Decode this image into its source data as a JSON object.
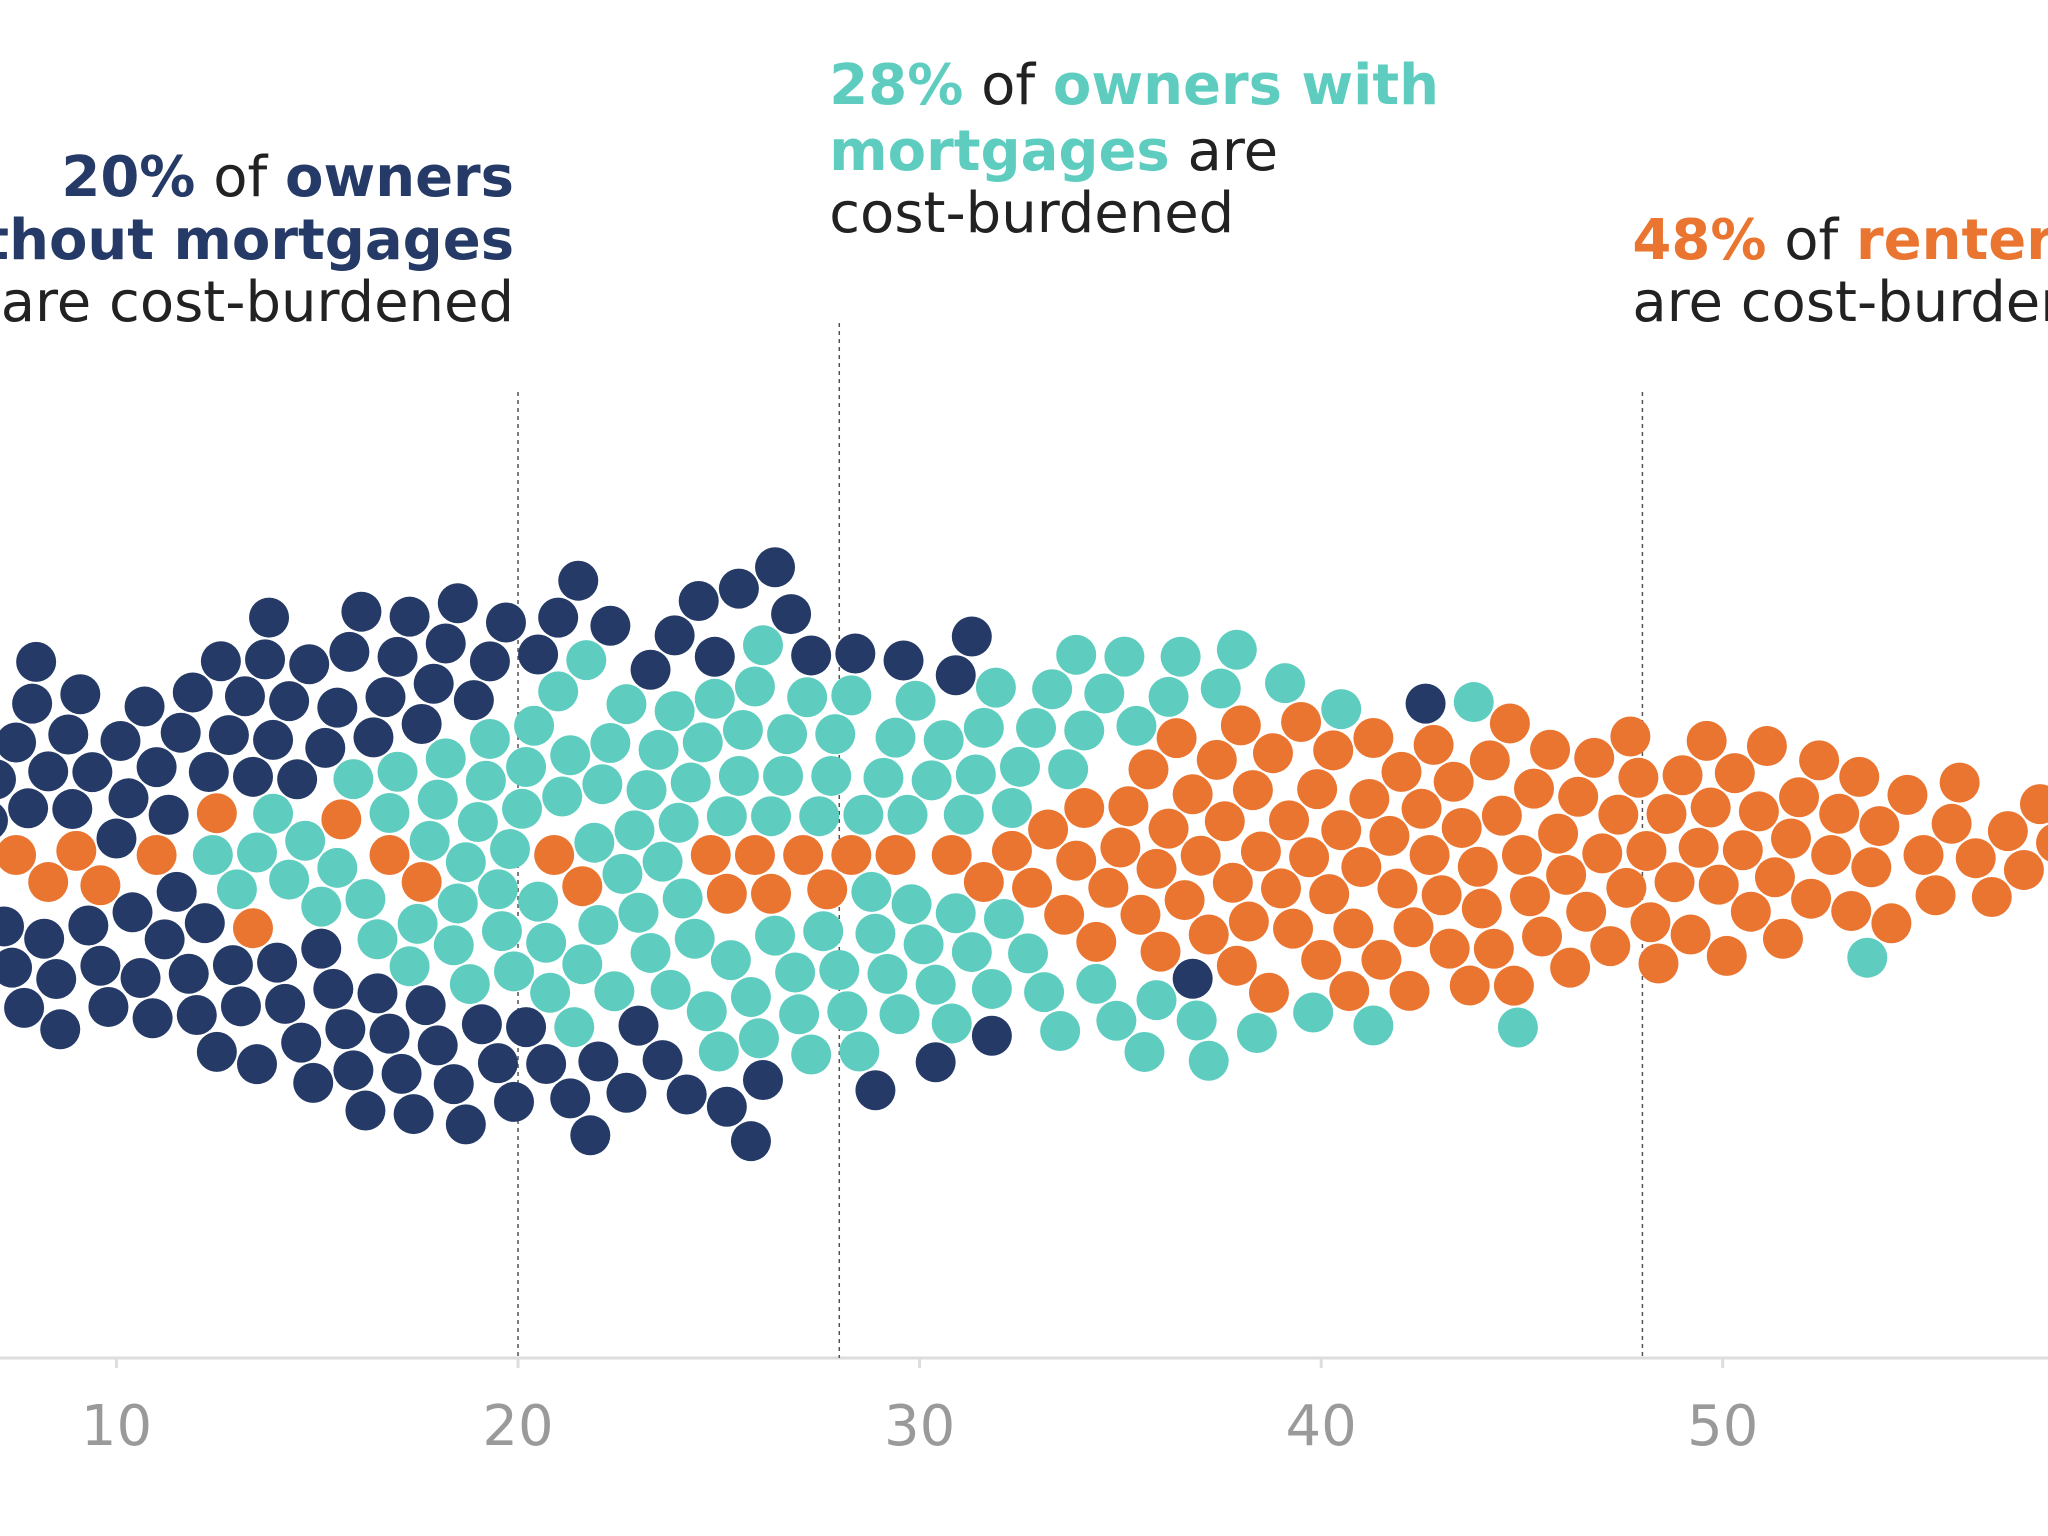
{
  "chart_data": {
    "type": "beeswarm",
    "xlim": [
      7.1,
      58.1
    ],
    "xticks": [
      10,
      20,
      30,
      40,
      50
    ],
    "series": [
      {
        "color": "#253a66",
        "values": [
          6.2,
          6.5,
          6.8,
          7.0,
          7.2,
          7.4,
          7.5,
          7.7,
          7.8,
          7.9,
          8.0,
          8.2,
          8.3,
          8.5,
          8.6,
          8.8,
          8.9,
          9.1,
          9.3,
          9.4,
          9.6,
          9.8,
          10.0,
          10.1,
          10.3,
          10.4,
          10.6,
          10.7,
          10.9,
          11.0,
          11.2,
          11.3,
          11.5,
          11.6,
          11.8,
          11.9,
          12.0,
          12.2,
          12.3,
          12.5,
          12.6,
          12.8,
          12.9,
          13.1,
          13.2,
          13.4,
          13.5,
          13.7,
          13.8,
          13.9,
          14.0,
          14.2,
          14.3,
          14.5,
          14.6,
          14.8,
          14.9,
          15.1,
          15.2,
          15.4,
          15.5,
          15.7,
          15.8,
          15.9,
          16.1,
          16.2,
          16.4,
          16.5,
          16.7,
          16.8,
          17.0,
          17.1,
          17.3,
          17.4,
          17.6,
          17.7,
          17.9,
          18.0,
          18.2,
          18.4,
          18.5,
          18.7,
          18.9,
          19.1,
          19.3,
          19.5,
          19.7,
          19.9,
          20.2,
          20.5,
          20.7,
          21.0,
          21.3,
          21.5,
          21.8,
          22.0,
          22.3,
          22.7,
          23.0,
          23.3,
          23.6,
          23.9,
          24.2,
          24.5,
          24.9,
          25.2,
          25.5,
          25.8,
          26.1,
          26.4,
          26.8,
          27.3,
          28.4,
          28.9,
          29.6,
          30.4,
          30.9,
          31.3,
          31.8,
          36.8,
          42.6
        ]
      },
      {
        "color": "#5ecdc0",
        "values": [
          12.4,
          13.0,
          13.5,
          13.9,
          14.3,
          14.7,
          15.1,
          15.5,
          15.9,
          16.2,
          16.5,
          16.8,
          17.0,
          17.3,
          17.5,
          17.8,
          18.0,
          18.2,
          18.4,
          18.5,
          18.7,
          18.8,
          19.0,
          19.2,
          19.3,
          19.5,
          19.6,
          19.8,
          19.9,
          20.1,
          20.2,
          20.4,
          20.5,
          20.7,
          20.8,
          21.0,
          21.1,
          21.3,
          21.4,
          21.6,
          21.7,
          21.9,
          22.0,
          22.1,
          22.3,
          22.4,
          22.6,
          22.7,
          22.9,
          23.0,
          23.2,
          23.3,
          23.5,
          23.6,
          23.8,
          23.9,
          24.0,
          24.1,
          24.3,
          24.4,
          24.6,
          24.7,
          24.9,
          25.0,
          25.2,
          25.3,
          25.5,
          25.6,
          25.8,
          25.9,
          26.0,
          26.1,
          26.3,
          26.4,
          26.6,
          26.7,
          26.9,
          27.0,
          27.2,
          27.3,
          27.5,
          27.6,
          27.8,
          27.9,
          28.0,
          28.2,
          28.3,
          28.5,
          28.6,
          28.8,
          28.9,
          29.1,
          29.2,
          29.4,
          29.5,
          29.7,
          29.8,
          29.9,
          30.1,
          30.3,
          30.4,
          30.6,
          30.8,
          30.9,
          31.1,
          31.3,
          31.4,
          31.6,
          31.8,
          31.9,
          32.1,
          32.3,
          32.5,
          32.7,
          32.9,
          33.1,
          33.3,
          33.5,
          33.7,
          33.9,
          34.1,
          34.4,
          34.6,
          34.9,
          35.1,
          35.4,
          35.6,
          35.9,
          36.2,
          36.5,
          36.9,
          37.2,
          37.5,
          37.9,
          38.4,
          39.1,
          39.8,
          40.5,
          41.3,
          43.8,
          44.9,
          53.6
        ]
      },
      {
        "color": "#ea7530",
        "values": [
          7.5,
          8.3,
          9.0,
          9.6,
          11.0,
          12.5,
          13.4,
          15.6,
          16.8,
          17.6,
          20.9,
          21.6,
          24.8,
          25.2,
          25.9,
          26.3,
          27.1,
          27.7,
          28.3,
          29.4,
          30.8,
          31.6,
          32.3,
          32.8,
          33.2,
          33.6,
          33.9,
          34.1,
          34.4,
          34.7,
          35.0,
          35.2,
          35.5,
          35.7,
          35.9,
          36.0,
          36.2,
          36.4,
          36.6,
          36.8,
          37.0,
          37.2,
          37.4,
          37.6,
          37.8,
          37.9,
          38.0,
          38.2,
          38.3,
          38.5,
          38.7,
          38.8,
          39.0,
          39.2,
          39.3,
          39.5,
          39.7,
          39.9,
          40.0,
          40.2,
          40.3,
          40.5,
          40.7,
          40.8,
          41.0,
          41.2,
          41.3,
          41.5,
          41.7,
          41.9,
          42.0,
          42.2,
          42.3,
          42.5,
          42.7,
          42.8,
          43.0,
          43.2,
          43.3,
          43.5,
          43.7,
          43.9,
          44.0,
          44.2,
          44.3,
          44.5,
          44.7,
          44.8,
          45.0,
          45.2,
          45.3,
          45.5,
          45.7,
          45.9,
          46.1,
          46.2,
          46.4,
          46.6,
          46.8,
          47.0,
          47.2,
          47.4,
          47.6,
          47.7,
          47.9,
          48.1,
          48.2,
          48.4,
          48.6,
          48.8,
          49.0,
          49.2,
          49.4,
          49.6,
          49.7,
          49.9,
          50.1,
          50.3,
          50.5,
          50.7,
          50.9,
          51.1,
          51.3,
          51.5,
          51.7,
          51.9,
          52.2,
          52.4,
          52.7,
          52.9,
          53.2,
          53.4,
          53.7,
          53.9,
          54.2,
          54.6,
          55.0,
          55.3,
          55.7,
          55.9,
          56.3,
          56.7,
          57.1,
          57.5,
          57.9,
          58.3,
          58.8,
          59.4
        ]
      }
    ],
    "annotations": [
      {
        "value": 20,
        "anchor": "end",
        "lines": [
          [
            {
              "text": "20%",
              "color": "#253a66",
              "bold": true
            },
            {
              "text": " of ",
              "color": "#222222"
            },
            {
              "text": "owners",
              "color": "#253a66",
              "bold": true
            }
          ],
          [
            {
              "text": "without mortgages",
              "color": "#253a66",
              "bold": true
            }
          ],
          [
            {
              "text": "are cost-burdened",
              "color": "#222222"
            }
          ]
        ]
      },
      {
        "value": 28,
        "anchor": "start",
        "lines": [
          [
            {
              "text": "28%",
              "color": "#5ecdc0",
              "bold": true
            },
            {
              "text": " of ",
              "color": "#222222"
            },
            {
              "text": "owners with",
              "color": "#5ecdc0",
              "bold": true
            }
          ],
          [
            {
              "text": "mortgages",
              "color": "#5ecdc0",
              "bold": true
            },
            {
              "text": " are",
              "color": "#222222"
            }
          ],
          [
            {
              "text": "cost-burdened",
              "color": "#222222"
            }
          ]
        ]
      },
      {
        "value": 48,
        "anchor": "start",
        "lines": [
          [
            {
              "text": "48%",
              "color": "#ea7530",
              "bold": true
            },
            {
              "text": " of ",
              "color": "#222222"
            },
            {
              "text": "renters",
              "color": "#ea7530",
              "bold": true
            }
          ],
          [
            {
              "text": "are cost-burdened",
              "color": "#222222"
            }
          ]
        ]
      }
    ]
  }
}
